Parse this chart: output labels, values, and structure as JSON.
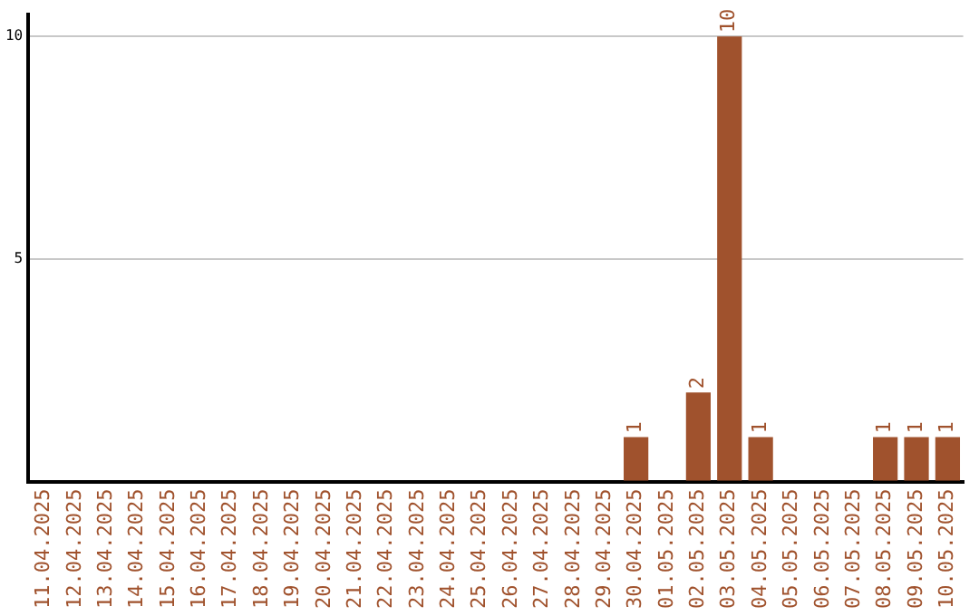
{
  "chart_data": {
    "type": "bar",
    "categories": [
      "11.04.2025",
      "12.04.2025",
      "13.04.2025",
      "14.04.2025",
      "15.04.2025",
      "16.04.2025",
      "17.04.2025",
      "18.04.2025",
      "19.04.2025",
      "20.04.2025",
      "21.04.2025",
      "22.04.2025",
      "23.04.2025",
      "24.04.2025",
      "25.04.2025",
      "26.04.2025",
      "27.04.2025",
      "28.04.2025",
      "29.04.2025",
      "30.04.2025",
      "01.05.2025",
      "02.05.2025",
      "03.05.2025",
      "04.05.2025",
      "05.05.2025",
      "06.05.2025",
      "07.05.2025",
      "08.05.2025",
      "09.05.2025",
      "10.05.2025"
    ],
    "values": [
      0,
      0,
      0,
      0,
      0,
      0,
      0,
      0,
      0,
      0,
      0,
      0,
      0,
      0,
      0,
      0,
      0,
      0,
      0,
      1,
      0,
      2,
      10,
      1,
      0,
      0,
      0,
      1,
      1,
      1
    ],
    "color": "#a0522d",
    "ylim": [
      0,
      10.5
    ],
    "yticks": [
      {
        "value": 0,
        "label": null
      },
      5,
      10
    ],
    "grid": "y",
    "value_labels": [
      null,
      null,
      null,
      null,
      null,
      null,
      null,
      null,
      null,
      null,
      null,
      null,
      null,
      null,
      null,
      null,
      null,
      null,
      null,
      "1",
      null,
      "2",
      "10",
      "1",
      null,
      null,
      null,
      "1",
      "1",
      "1"
    ],
    "legend": false
  }
}
